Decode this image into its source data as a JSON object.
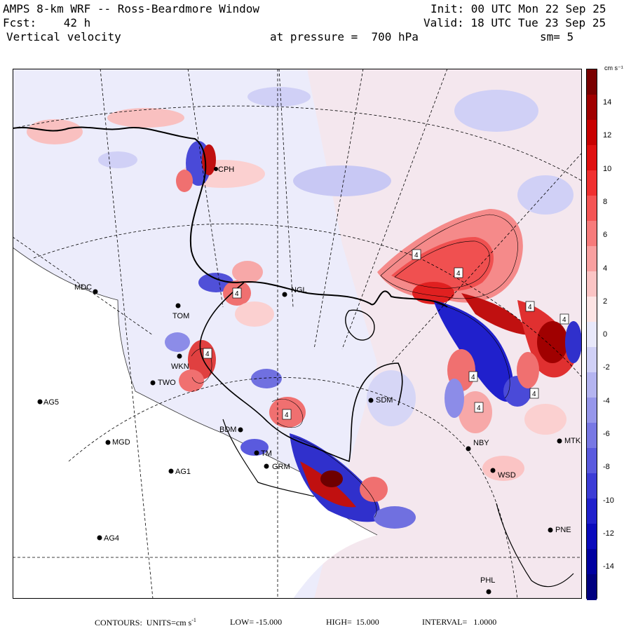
{
  "header": {
    "title": "AMPS 8-km WRF -- Ross-Beardmore Window",
    "init": "Init: 00 UTC Mon 22 Sep 25",
    "fcst": "Fcst:    42 h",
    "valid": "Valid: 18 UTC Tue 23 Sep 25",
    "field": "Vertical velocity",
    "level": "at pressure =  700 hPa",
    "smooth": "sm= 5"
  },
  "colorbar": {
    "unit": "cm s⁻¹",
    "labels": [
      "14",
      "12",
      "10",
      "8",
      "6",
      "4",
      "2",
      "0",
      "-2",
      "-4",
      "-6",
      "-8",
      "-10",
      "-12",
      "-14"
    ],
    "colors": [
      "#7a0000",
      "#a00000",
      "#c80000",
      "#e01010",
      "#f03030",
      "#f55555",
      "#f77b7b",
      "#f9a0a0",
      "#fbc4c4",
      "#fde4e4",
      "#e8e8fa",
      "#d0d0f6",
      "#b4b4f0",
      "#9696ea",
      "#7878e4",
      "#5a5ade",
      "#3c3cd6",
      "#2020cc",
      "#0a0abc",
      "#0000a0",
      "#000080"
    ]
  },
  "stations": [
    {
      "id": "CPH",
      "label": "CPH"
    },
    {
      "id": "MDC",
      "label": "MDC"
    },
    {
      "id": "NGL",
      "label": "NGL"
    },
    {
      "id": "TOM",
      "label": "TOM"
    },
    {
      "id": "WKN",
      "label": "WKN"
    },
    {
      "id": "TWO",
      "label": "TWO"
    },
    {
      "id": "AG5",
      "label": "AG5"
    },
    {
      "id": "SDM",
      "label": "SDM"
    },
    {
      "id": "BDM",
      "label": "BDM"
    },
    {
      "id": "MGD",
      "label": "MGD"
    },
    {
      "id": "TM",
      "label": "TM"
    },
    {
      "id": "GRM",
      "label": "GRM"
    },
    {
      "id": "NBY",
      "label": "NBY"
    },
    {
      "id": "MTK",
      "label": "MTK"
    },
    {
      "id": "AG1",
      "label": "AG1"
    },
    {
      "id": "WSD",
      "label": "WSD"
    },
    {
      "id": "PNE",
      "label": "PNE"
    },
    {
      "id": "AG4",
      "label": "AG4"
    },
    {
      "id": "PHL",
      "label": "PHL"
    }
  ],
  "contour_labels": [
    "4",
    "4",
    "4",
    "4",
    "4",
    "4",
    "4",
    "4",
    "4",
    "4"
  ],
  "footer": {
    "contours_prefix": "CONTOURS:  UNITS=cm s",
    "unit_sup": "-1",
    "low": "LOW= -15.000",
    "high": "HIGH=  15.000",
    "interval": "INTERVAL=   1.0000"
  },
  "colors": {
    "bg_blue": "#ececfb",
    "land_pink": "#fdeaea"
  }
}
